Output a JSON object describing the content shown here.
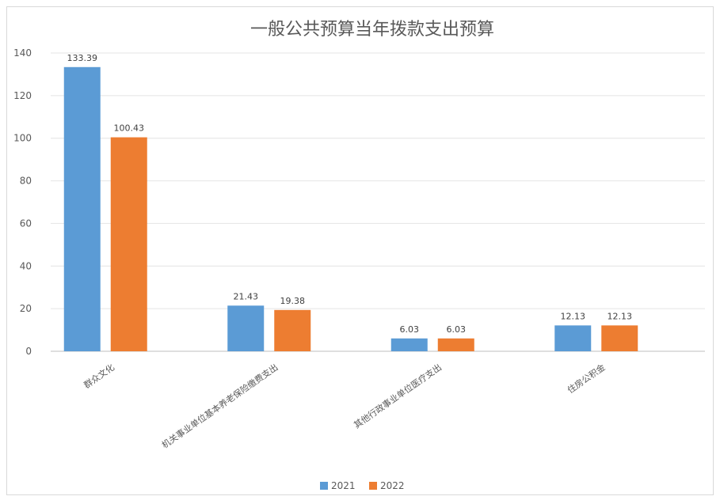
{
  "chart_data": {
    "type": "bar",
    "title": "一般公共预算当年拨款支出预算",
    "categories": [
      "群众文化",
      "机关事业单位基本养老保险缴费支出",
      "其他行政事业单位医疗支出",
      "住房公积金"
    ],
    "series": [
      {
        "name": "2021",
        "values": [
          133.39,
          21.43,
          6.03,
          12.13
        ],
        "color": "#5b9bd5"
      },
      {
        "name": "2022",
        "values": [
          100.43,
          19.38,
          6.03,
          12.13
        ],
        "color": "#ed7d31"
      }
    ],
    "data_labels": [
      [
        "133.39",
        "21.43",
        "6.03",
        "12.13"
      ],
      [
        "100.43",
        "19.38",
        "6.03",
        "12.13"
      ]
    ],
    "ylim": [
      0,
      140
    ],
    "yticks": [
      "0",
      "20",
      "40",
      "60",
      "80",
      "100",
      "120",
      "140"
    ],
    "grid": true,
    "legend_position": "bottom"
  }
}
